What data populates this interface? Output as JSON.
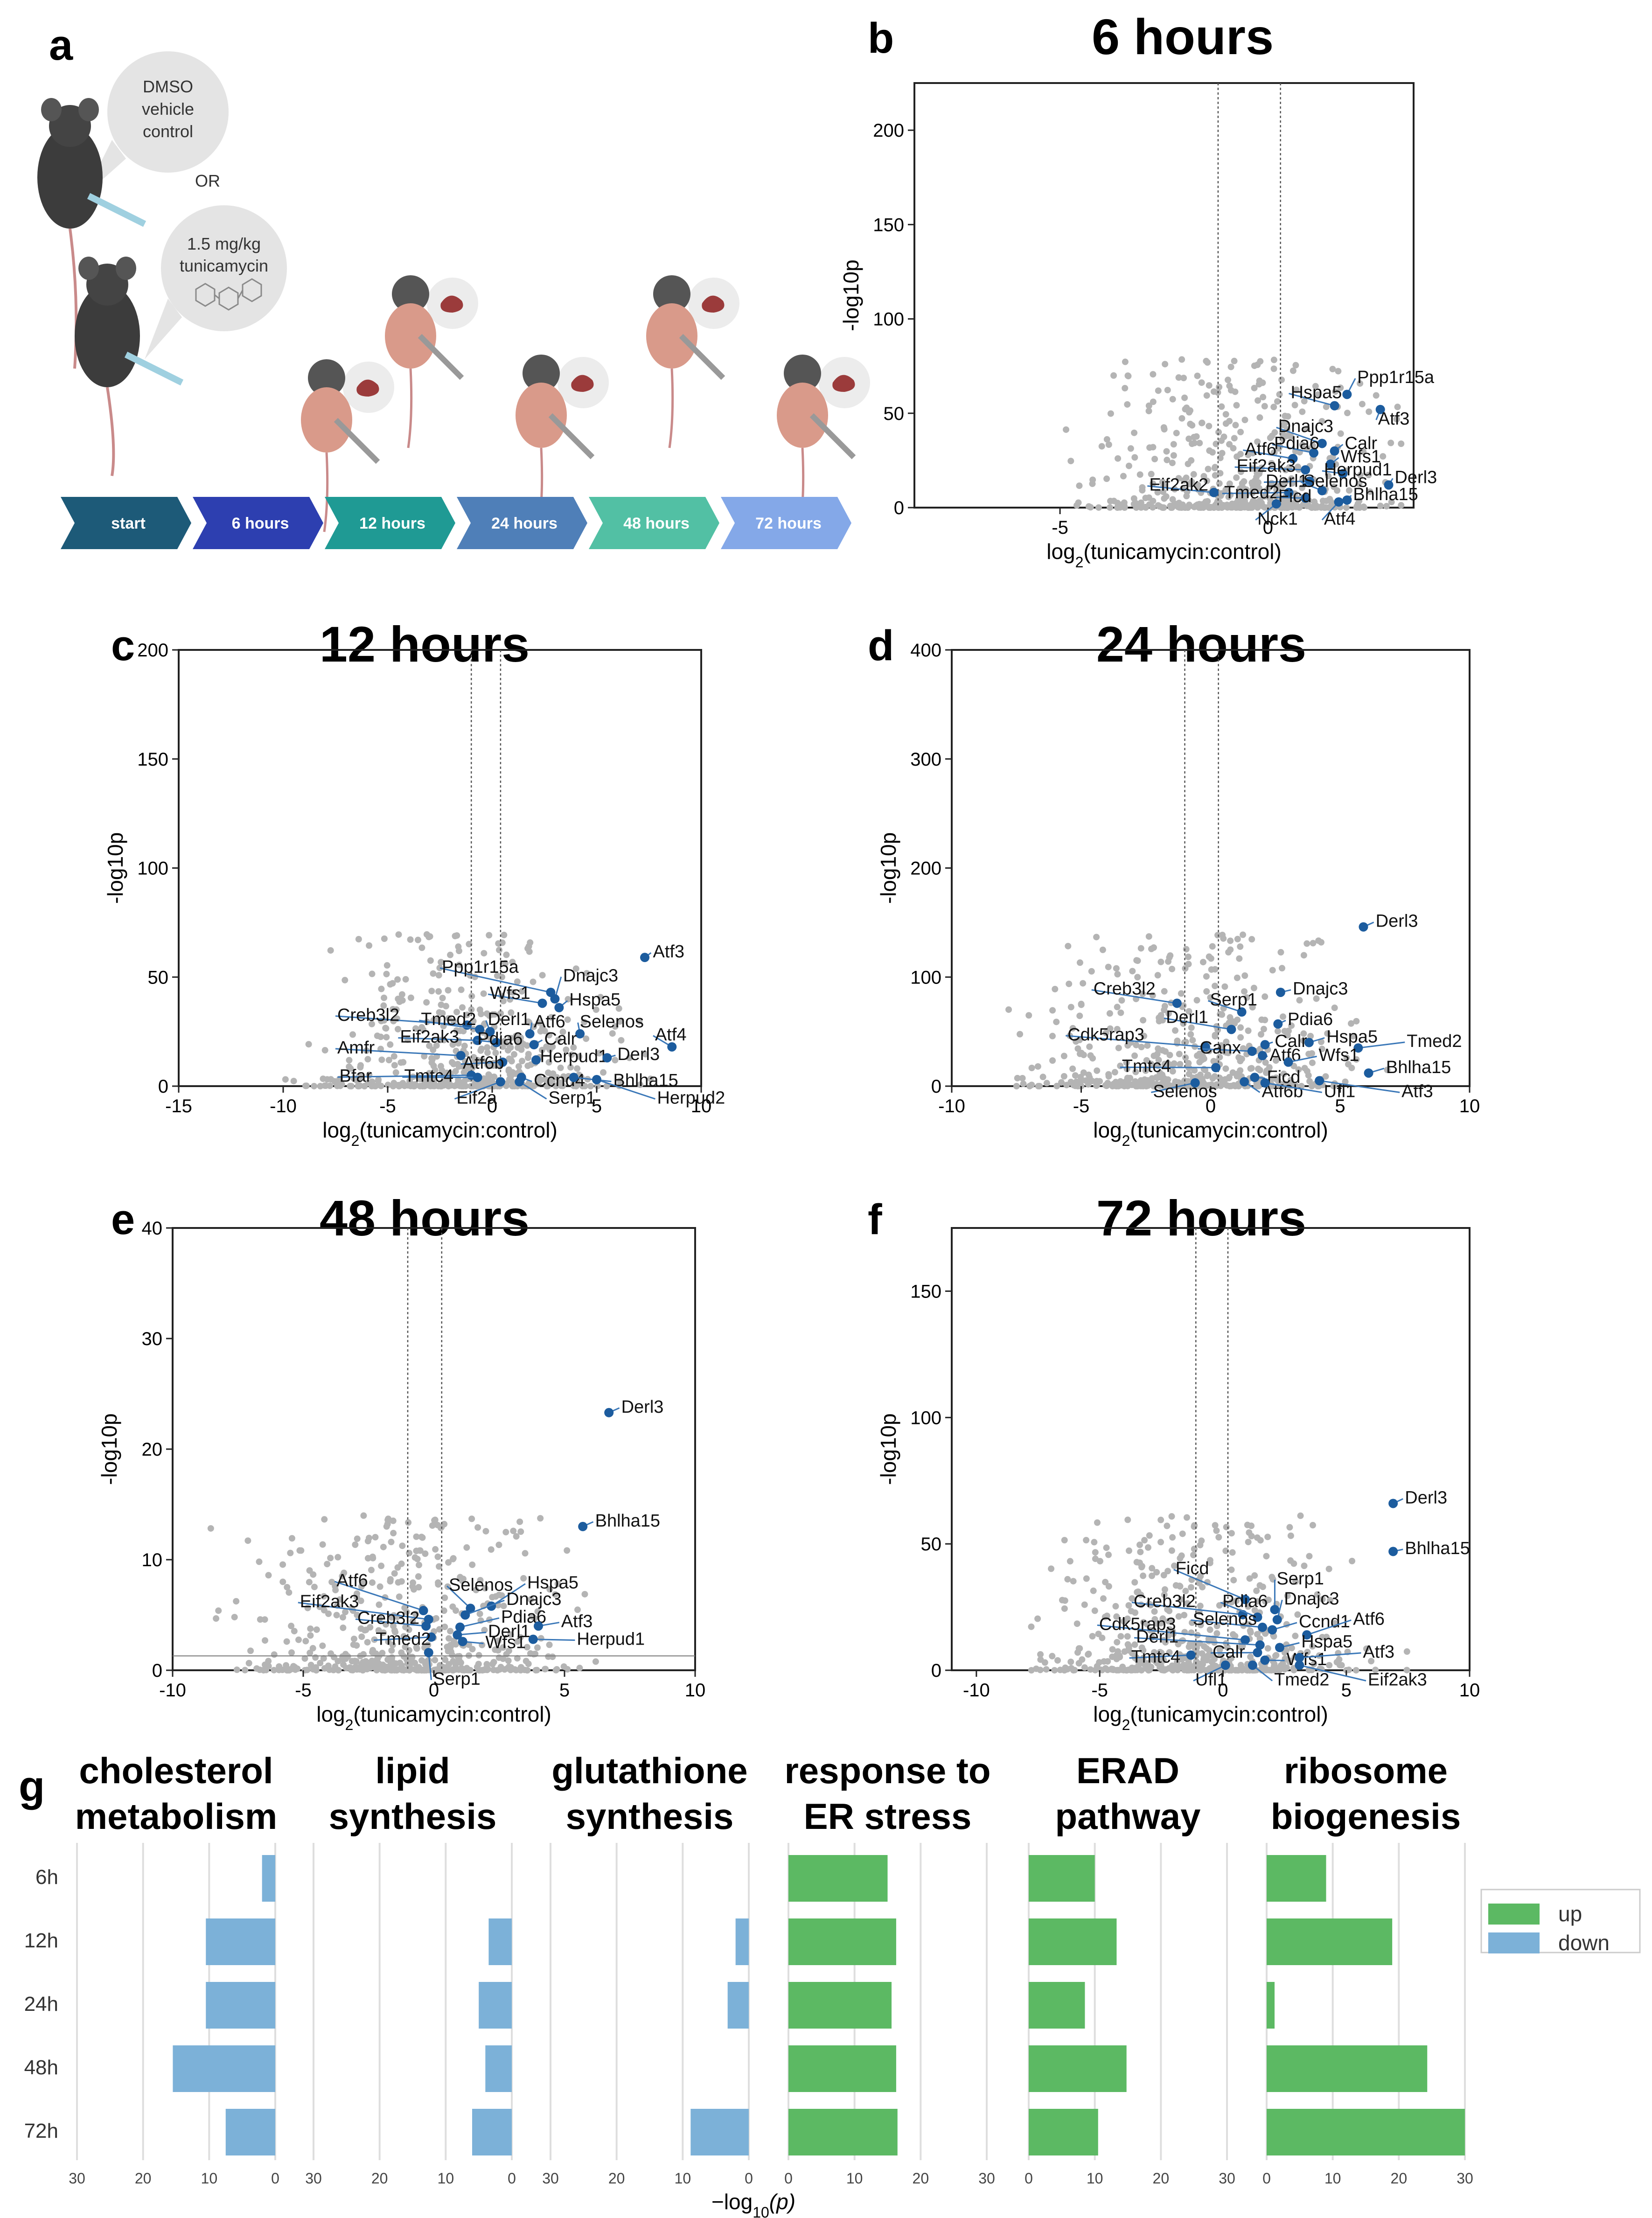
{
  "panel_a": {
    "label": "a",
    "bubble_dmso": [
      "DMSO",
      "vehicle",
      "control"
    ],
    "or_text": "OR",
    "bubble_tm": [
      "1.5 mg/kg",
      "tunicamycin"
    ],
    "timeline": [
      {
        "label": "start",
        "color": "#1d5a78"
      },
      {
        "label": "6 hours",
        "color": "#2d3fb0"
      },
      {
        "label": "12 hours",
        "color": "#1f9a94"
      },
      {
        "label": "24 hours",
        "color": "#4f7fb8"
      },
      {
        "label": "48 hours",
        "color": "#52c0a4"
      },
      {
        "label": "72 hours",
        "color": "#84a8e8"
      }
    ]
  },
  "chart_data": [
    {
      "panel": "b",
      "type": "scatter",
      "title": "6 hours",
      "xlabel": "log2(tunicamycin:control)",
      "ylabel": "-log10p",
      "xlim": [
        -8.5,
        3.5
      ],
      "ylim": [
        0,
        225
      ],
      "xticks": [
        -5,
        0
      ],
      "yticks": [
        0,
        50,
        100,
        150,
        200
      ],
      "vlines": [
        -1.2,
        0.3
      ],
      "highlight_color": "#1c5c9e",
      "genes": [
        {
          "name": "Ppp1r15a",
          "x": 1.9,
          "y": 60,
          "lx": 2.1,
          "ly": 66
        },
        {
          "name": "Hspa5",
          "x": 1.6,
          "y": 54,
          "lx": 0.5,
          "ly": 58
        },
        {
          "name": "Atf3",
          "x": 2.7,
          "y": 52,
          "lx": 2.6,
          "ly": 44
        },
        {
          "name": "Dnajc3",
          "x": 1.3,
          "y": 34,
          "lx": 0.2,
          "ly": 40
        },
        {
          "name": "Calr",
          "x": 1.6,
          "y": 30,
          "lx": 1.8,
          "ly": 31
        },
        {
          "name": "Pdia6",
          "x": 1.1,
          "y": 29,
          "lx": 0.1,
          "ly": 31
        },
        {
          "name": "Atf6",
          "x": 0.6,
          "y": 26,
          "lx": -0.6,
          "ly": 28
        },
        {
          "name": "Wfs1",
          "x": 1.5,
          "y": 23,
          "lx": 1.7,
          "ly": 24
        },
        {
          "name": "Eif2ak3",
          "x": 0.9,
          "y": 20,
          "lx": -0.8,
          "ly": 19
        },
        {
          "name": "Herpud1",
          "x": 1.8,
          "y": 18,
          "lx": 1.3,
          "ly": 17
        },
        {
          "name": "Derl1",
          "x": 1.0,
          "y": 14,
          "lx": -0.1,
          "ly": 11
        },
        {
          "name": "Derl3",
          "x": 2.9,
          "y": 12,
          "lx": 3.0,
          "ly": 13
        },
        {
          "name": "Selenos",
          "x": 1.3,
          "y": 9,
          "lx": 0.8,
          "ly": 11
        },
        {
          "name": "Eif2ak2",
          "x": -1.3,
          "y": 8,
          "lx": -2.9,
          "ly": 9
        },
        {
          "name": "Tmed2",
          "x": 0.5,
          "y": 8,
          "lx": -1.1,
          "ly": 5
        },
        {
          "name": "Ficd",
          "x": 0.9,
          "y": 5,
          "lx": 0.2,
          "ly": 3
        },
        {
          "name": "Bhlha15",
          "x": 1.9,
          "y": 4,
          "lx": 2.0,
          "ly": 4
        },
        {
          "name": "Nck1",
          "x": 0.2,
          "y": 2,
          "lx": -0.3,
          "ly": -9
        },
        {
          "name": "Atf4",
          "x": 1.7,
          "y": 3,
          "lx": 1.3,
          "ly": -9
        }
      ]
    },
    {
      "panel": "c",
      "type": "scatter",
      "title": "12 hours",
      "xlabel": "log2(tunicamycin:control)",
      "ylabel": "-log10p",
      "xlim": [
        -15,
        10
      ],
      "ylim": [
        0,
        200
      ],
      "xticks": [
        -15,
        -10,
        -5,
        0,
        5,
        10
      ],
      "yticks": [
        0,
        50,
        100,
        150,
        200
      ],
      "vlines": [
        -1.0,
        0.4
      ],
      "highlight_color": "#1c5c9e",
      "genes": [
        {
          "name": "Atf3",
          "x": 7.3,
          "y": 59,
          "lx": 7.6,
          "ly": 59
        },
        {
          "name": "Ppp1r15a",
          "x": 2.8,
          "y": 43,
          "lx": -2.5,
          "ly": 52
        },
        {
          "name": "Dnajc3",
          "x": 3.0,
          "y": 40,
          "lx": 3.3,
          "ly": 48
        },
        {
          "name": "Wfs1",
          "x": 2.4,
          "y": 38,
          "lx": -0.2,
          "ly": 40
        },
        {
          "name": "Hspa5",
          "x": 3.2,
          "y": 36,
          "lx": 3.6,
          "ly": 37
        },
        {
          "name": "Creb3l2",
          "x": -1.2,
          "y": 28,
          "lx": -7.5,
          "ly": 30
        },
        {
          "name": "Tmed2",
          "x": -0.6,
          "y": 26,
          "lx": -3.5,
          "ly": 28
        },
        {
          "name": "Derl1",
          "x": -0.1,
          "y": 25,
          "lx": -0.3,
          "ly": 28
        },
        {
          "name": "Atf6",
          "x": 1.8,
          "y": 24,
          "lx": 1.9,
          "ly": 27
        },
        {
          "name": "Selenos",
          "x": 4.2,
          "y": 24,
          "lx": 4.1,
          "ly": 27
        },
        {
          "name": "Eif2ak3",
          "x": -0.7,
          "y": 21,
          "lx": -4.5,
          "ly": 20
        },
        {
          "name": "Pdia6",
          "x": 0.2,
          "y": 20,
          "lx": -0.8,
          "ly": 19
        },
        {
          "name": "Calr",
          "x": 2.0,
          "y": 19,
          "lx": 2.4,
          "ly": 19
        },
        {
          "name": "Atf4",
          "x": 8.6,
          "y": 18,
          "lx": 7.7,
          "ly": 21
        },
        {
          "name": "Amfr",
          "x": -1.5,
          "y": 14,
          "lx": -7.5,
          "ly": 15
        },
        {
          "name": "Atf6b",
          "x": 0.5,
          "y": 11,
          "lx": -1.5,
          "ly": 8
        },
        {
          "name": "Herpud1",
          "x": 2.1,
          "y": 12,
          "lx": 2.2,
          "ly": 11
        },
        {
          "name": "Derl3",
          "x": 5.5,
          "y": 13,
          "lx": 5.9,
          "ly": 12
        },
        {
          "name": "Bfar",
          "x": -1.0,
          "y": 5,
          "lx": -7.4,
          "ly": 2
        },
        {
          "name": "Tmtc4",
          "x": -0.7,
          "y": 4,
          "lx": -4.3,
          "ly": 2
        },
        {
          "name": "Ccnd4",
          "x": 1.4,
          "y": 4,
          "lx": 1.9,
          "ly": 0
        },
        {
          "name": "Bhlha15",
          "x": 3.9,
          "y": 4,
          "lx": 5.7,
          "ly": 0
        },
        {
          "name": "Eif2a",
          "x": 0.4,
          "y": 2,
          "lx": -1.8,
          "ly": -8
        },
        {
          "name": "Serp1",
          "x": 1.3,
          "y": 2,
          "lx": 2.6,
          "ly": -8
        },
        {
          "name": "Herpud2",
          "x": 5.0,
          "y": 3,
          "lx": 7.8,
          "ly": -8
        }
      ]
    },
    {
      "panel": "d",
      "type": "scatter",
      "title": "24 hours",
      "xlabel": "log2(tunicamycin:control)",
      "ylabel": "-log10p",
      "xlim": [
        -10,
        10
      ],
      "ylim": [
        0,
        400
      ],
      "xticks": [
        -10,
        -5,
        0,
        5,
        10
      ],
      "yticks": [
        0,
        100,
        200,
        300,
        400
      ],
      "vlines": [
        -1.0,
        0.3
      ],
      "highlight_color": "#1c5c9e",
      "genes": [
        {
          "name": "Derl3",
          "x": 5.9,
          "y": 146,
          "lx": 6.3,
          "ly": 146
        },
        {
          "name": "Dnajc3",
          "x": 2.7,
          "y": 86,
          "lx": 3.1,
          "ly": 84
        },
        {
          "name": "Creb3l2",
          "x": -1.3,
          "y": 76,
          "lx": -4.6,
          "ly": 84
        },
        {
          "name": "Serp1",
          "x": 1.2,
          "y": 68,
          "lx": -0.1,
          "ly": 74
        },
        {
          "name": "Pdia6",
          "x": 2.6,
          "y": 57,
          "lx": 2.9,
          "ly": 56
        },
        {
          "name": "Derl1",
          "x": 0.8,
          "y": 52,
          "lx": -1.8,
          "ly": 58
        },
        {
          "name": "Cdk5rap3",
          "x": -0.2,
          "y": 36,
          "lx": -5.6,
          "ly": 42
        },
        {
          "name": "Calr",
          "x": 2.1,
          "y": 38,
          "lx": 2.4,
          "ly": 36
        },
        {
          "name": "Hspa5",
          "x": 3.8,
          "y": 40,
          "lx": 4.4,
          "ly": 40
        },
        {
          "name": "Tmed2",
          "x": 5.7,
          "y": 35,
          "lx": 7.5,
          "ly": 36
        },
        {
          "name": "Canx",
          "x": 1.6,
          "y": 32,
          "lx": -0.5,
          "ly": 30
        },
        {
          "name": "Atf6",
          "x": 2.0,
          "y": 28,
          "lx": 2.2,
          "ly": 23
        },
        {
          "name": "Wfs1",
          "x": 3.0,
          "y": 22,
          "lx": 4.1,
          "ly": 23
        },
        {
          "name": "Tmtc4",
          "x": 0.2,
          "y": 17,
          "lx": -3.5,
          "ly": 13
        },
        {
          "name": "Bhlha15",
          "x": 6.1,
          "y": 12,
          "lx": 6.7,
          "ly": 12
        },
        {
          "name": "Ficd",
          "x": 1.7,
          "y": 8,
          "lx": 2.1,
          "ly": 3
        },
        {
          "name": "Selenos",
          "x": -0.6,
          "y": 3,
          "lx": -2.3,
          "ly": -10
        },
        {
          "name": "Atf6b",
          "x": 1.3,
          "y": 4,
          "lx": 1.9,
          "ly": -10
        },
        {
          "name": "Ufl1",
          "x": 2.1,
          "y": 3,
          "lx": 4.3,
          "ly": -10
        },
        {
          "name": "Atf3",
          "x": 4.2,
          "y": 5,
          "lx": 7.3,
          "ly": -10
        }
      ]
    },
    {
      "panel": "e",
      "type": "scatter",
      "title": "48 hours",
      "xlabel": "log2(tunicamycin:control)",
      "ylabel": "-log10p",
      "xlim": [
        -10,
        10
      ],
      "ylim": [
        0,
        40
      ],
      "xticks": [
        -10,
        -5,
        0,
        5,
        10
      ],
      "yticks": [
        0,
        10,
        20,
        30,
        40
      ],
      "vlines": [
        -1.0,
        0.3
      ],
      "hline": 1.3,
      "highlight_color": "#1c5c9e",
      "genes": [
        {
          "name": "Derl3",
          "x": 6.7,
          "y": 23.3,
          "lx": 7.1,
          "ly": 23.3
        },
        {
          "name": "Bhlha15",
          "x": 5.7,
          "y": 13.0,
          "lx": 6.1,
          "ly": 13.0
        },
        {
          "name": "Atf6",
          "x": -0.4,
          "y": 5.4,
          "lx": -3.8,
          "ly": 7.6
        },
        {
          "name": "Selenos",
          "x": 1.4,
          "y": 5.6,
          "lx": 0.5,
          "ly": 7.2
        },
        {
          "name": "Hspa5",
          "x": 2.2,
          "y": 5.8,
          "lx": 3.5,
          "ly": 7.4
        },
        {
          "name": "Eif2ak3",
          "x": -0.2,
          "y": 4.6,
          "lx": -5.2,
          "ly": 5.7
        },
        {
          "name": "Dnajc3",
          "x": 1.2,
          "y": 5.0,
          "lx": 2.7,
          "ly": 5.9
        },
        {
          "name": "Creb3l2",
          "x": -0.3,
          "y": 4.0,
          "lx": -3.0,
          "ly": 4.2
        },
        {
          "name": "Pdia6",
          "x": 1.0,
          "y": 3.9,
          "lx": 2.5,
          "ly": 4.3
        },
        {
          "name": "Atf3",
          "x": 4.0,
          "y": 4.0,
          "lx": 4.8,
          "ly": 3.9
        },
        {
          "name": "Tmed2",
          "x": -0.1,
          "y": 3.0,
          "lx": -2.3,
          "ly": 2.3
        },
        {
          "name": "Derl1",
          "x": 0.9,
          "y": 3.2,
          "lx": 2.0,
          "ly": 3.0
        },
        {
          "name": "Wfs1",
          "x": 1.1,
          "y": 2.6,
          "lx": 1.9,
          "ly": 2.0
        },
        {
          "name": "Herpud1",
          "x": 3.8,
          "y": 2.8,
          "lx": 5.4,
          "ly": 2.3
        },
        {
          "name": "Serp1",
          "x": -0.2,
          "y": 1.6,
          "lx": -0.1,
          "ly": -1.3
        }
      ]
    },
    {
      "panel": "f",
      "type": "scatter",
      "title": "72 hours",
      "xlabel": "log2(tunicamycin:control)",
      "ylabel": "-log10p",
      "xlim": [
        -11,
        10
      ],
      "ylim": [
        0,
        175
      ],
      "xticks": [
        -10,
        -5,
        0,
        5,
        10
      ],
      "yticks": [
        0,
        50,
        100,
        150
      ],
      "vlines": [
        -1.1,
        0.2
      ],
      "highlight_color": "#1c5c9e",
      "genes": [
        {
          "name": "Derl3",
          "x": 6.9,
          "y": 66,
          "lx": 7.3,
          "ly": 66
        },
        {
          "name": "Bhlha15",
          "x": 6.9,
          "y": 47,
          "lx": 7.3,
          "ly": 46
        },
        {
          "name": "Ficd",
          "x": 0.9,
          "y": 28,
          "lx": -2.0,
          "ly": 38
        },
        {
          "name": "Serp1",
          "x": 2.1,
          "y": 24,
          "lx": 2.1,
          "ly": 34
        },
        {
          "name": "Creb3l2",
          "x": 0.8,
          "y": 22,
          "lx": -3.7,
          "ly": 25
        },
        {
          "name": "Pdia6",
          "x": 1.4,
          "y": 21,
          "lx": -0.1,
          "ly": 25
        },
        {
          "name": "Dnajc3",
          "x": 2.2,
          "y": 20,
          "lx": 2.4,
          "ly": 26
        },
        {
          "name": "Selenos",
          "x": 1.6,
          "y": 17,
          "lx": -1.3,
          "ly": 18
        },
        {
          "name": "Ccnd1",
          "x": 2.0,
          "y": 16,
          "lx": 3.0,
          "ly": 17
        },
        {
          "name": "Atf6",
          "x": 3.4,
          "y": 14,
          "lx": 5.2,
          "ly": 18
        },
        {
          "name": "Cdk5rap3",
          "x": 0.9,
          "y": 12,
          "lx": -5.1,
          "ly": 16
        },
        {
          "name": "Derl1",
          "x": 1.5,
          "y": 10,
          "lx": -3.6,
          "ly": 11
        },
        {
          "name": "Hspa5",
          "x": 2.3,
          "y": 9,
          "lx": 3.1,
          "ly": 9
        },
        {
          "name": "Calr",
          "x": 1.4,
          "y": 7,
          "lx": -0.5,
          "ly": 5
        },
        {
          "name": "Tmtc4",
          "x": -1.3,
          "y": 6,
          "lx": -3.8,
          "ly": 3
        },
        {
          "name": "Wfs1",
          "x": 1.7,
          "y": 4,
          "lx": 2.5,
          "ly": 2
        },
        {
          "name": "Atf3",
          "x": 3.1,
          "y": 5,
          "lx": 5.6,
          "ly": 5
        },
        {
          "name": "Ufl1",
          "x": 0.1,
          "y": 2,
          "lx": -1.2,
          "ly": -6
        },
        {
          "name": "Tmed2",
          "x": 1.2,
          "y": 2,
          "lx": 2.0,
          "ly": -6
        },
        {
          "name": "Eif2ak3",
          "x": 3.1,
          "y": 2,
          "lx": 5.8,
          "ly": -6
        }
      ]
    },
    {
      "panel": "g",
      "type": "bar",
      "categories": [
        "6h",
        "12h",
        "24h",
        "48h",
        "72h"
      ],
      "xlabel": "−log10(p)",
      "xlim": [
        0,
        30
      ],
      "xticks": [
        30,
        20,
        10,
        0
      ],
      "legend": [
        {
          "label": "up",
          "color": "#5cb963"
        },
        {
          "label": "down",
          "color": "#7cb1d8"
        }
      ],
      "groups": [
        {
          "title": [
            "cholesterol",
            "metabolism"
          ],
          "direction": "down",
          "values": [
            2,
            10.5,
            10.5,
            15.5,
            7.5
          ]
        },
        {
          "title": [
            "lipid",
            "synthesis"
          ],
          "direction": "down",
          "values": [
            0,
            3.5,
            5,
            4,
            6
          ]
        },
        {
          "title": [
            "glutathione",
            "synthesis"
          ],
          "direction": "down",
          "values": [
            0,
            2,
            3.2,
            0,
            8.8
          ]
        },
        {
          "title": [
            "response to",
            "ER stress"
          ],
          "direction": "up",
          "values": [
            15,
            16.3,
            15.6,
            16.3,
            16.5
          ]
        },
        {
          "title": [
            "ERAD",
            "pathway"
          ],
          "direction": "up",
          "values": [
            10,
            13.3,
            8.5,
            14.8,
            10.5
          ]
        },
        {
          "title": [
            "ribosome",
            "biogenesis"
          ],
          "direction": "up",
          "values": [
            9,
            19,
            1.2,
            24.3,
            30
          ]
        }
      ]
    }
  ]
}
